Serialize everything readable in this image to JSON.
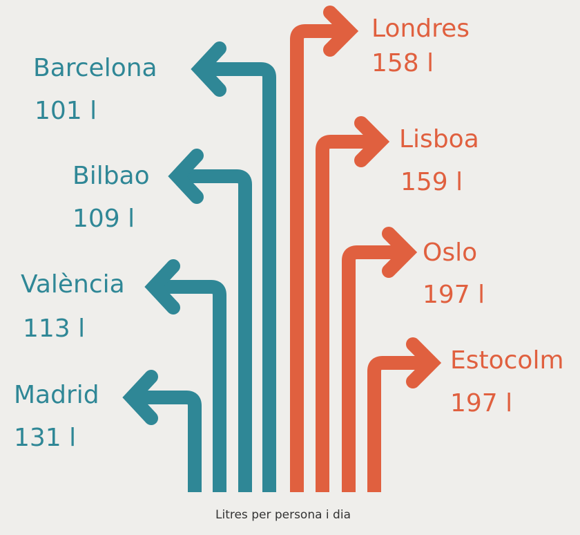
{
  "left": [
    {
      "city": "Barcelona",
      "value": "101 l"
    },
    {
      "city": "Bilbao",
      "value": "109 l"
    },
    {
      "city": "València",
      "value": "113 l"
    },
    {
      "city": "Madrid",
      "value": "131 l"
    }
  ],
  "right": [
    {
      "city": "Londres",
      "value": "158 l"
    },
    {
      "city": "Lisboa",
      "value": "159 l"
    },
    {
      "city": "Oslo",
      "value": "197 l"
    },
    {
      "city": "Estocolm",
      "value": "197 l"
    }
  ],
  "caption": "Litres per persona i dia"
}
